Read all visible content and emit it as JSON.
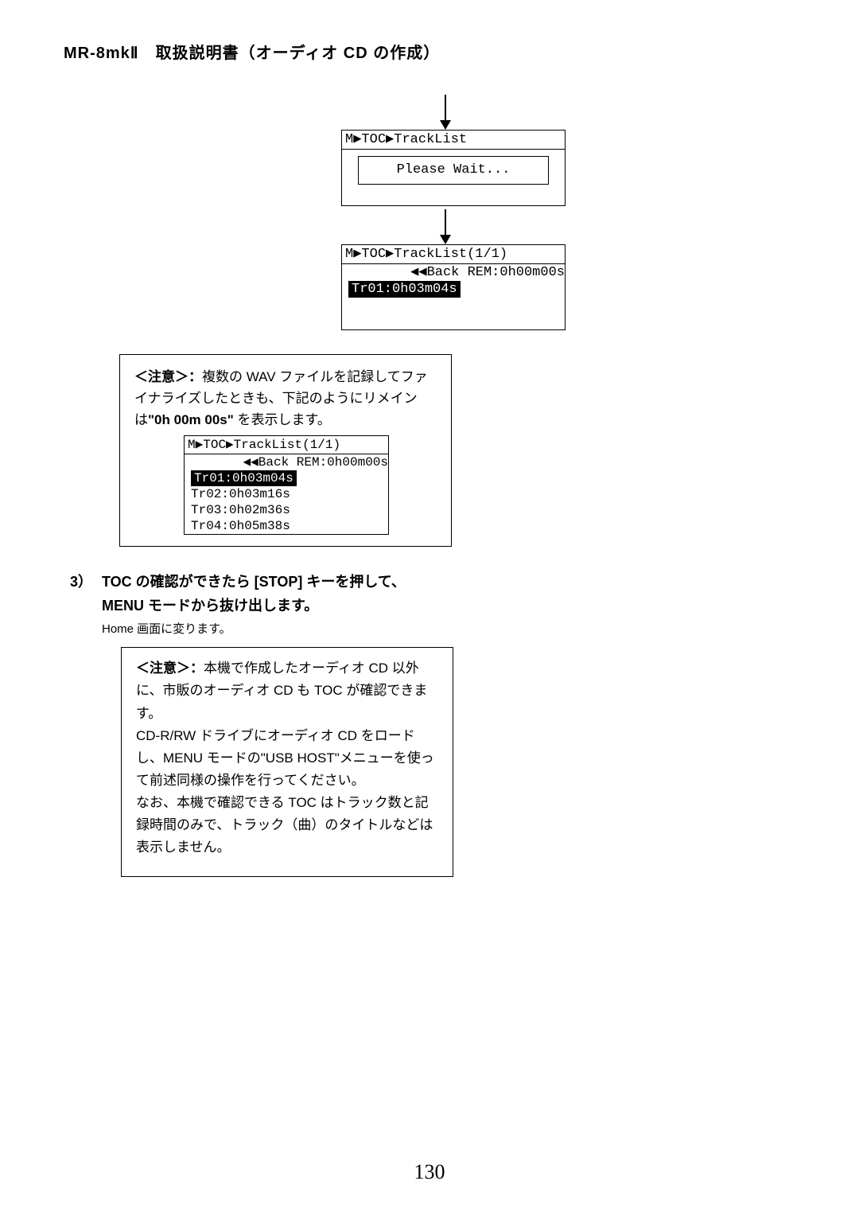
{
  "header": "MR-8mkⅡ　取扱説明書（オーディオ CD の作成）",
  "screens": {
    "screen1": {
      "title": "M▶TOC▶TrackList",
      "wait": "Please Wait..."
    },
    "screen2": {
      "title": "M▶TOC▶TrackList(1/1)",
      "backrow": "◀◀Back REM:0h00m00s",
      "track1": "Tr01:0h03m04s"
    }
  },
  "note1": {
    "label": "＜注意＞：",
    "line1": "複数の WAV ファイルを記録してファイナライズしたときも、下記のようにリメインは",
    "boldpart": "\"0h 00m 00s\"",
    "line1b": " を表示します。",
    "lcd": {
      "title": "M▶TOC▶TrackList(1/1)",
      "backrow": "◀◀Back REM:0h00m00s",
      "t1": "Tr01:0h03m04s",
      "t2": "Tr02:0h03m16s",
      "t3": "Tr03:0h02m36s",
      "t4": "Tr04:0h05m38s"
    }
  },
  "step3": {
    "num": "3）",
    "bold": "TOC の確認ができたら [STOP] キーを押して、MENU モードから抜け出します。",
    "sub": "Home 画面に変ります。"
  },
  "note2": {
    "label": "＜注意＞：",
    "body": "本機で作成したオーディオ CD 以外に、市販のオーディオ CD も TOC が確認できます。\nCD-R/RW ドライブにオーディオ CD をロードし、MENU モードの\"USB HOST\"メニューを使って前述同様の操作を行ってください。\nなお、本機で確認できる TOC はトラック数と記録時間のみで、トラック（曲）のタイトルなどは表示しません。"
  },
  "pageNumber": "130"
}
